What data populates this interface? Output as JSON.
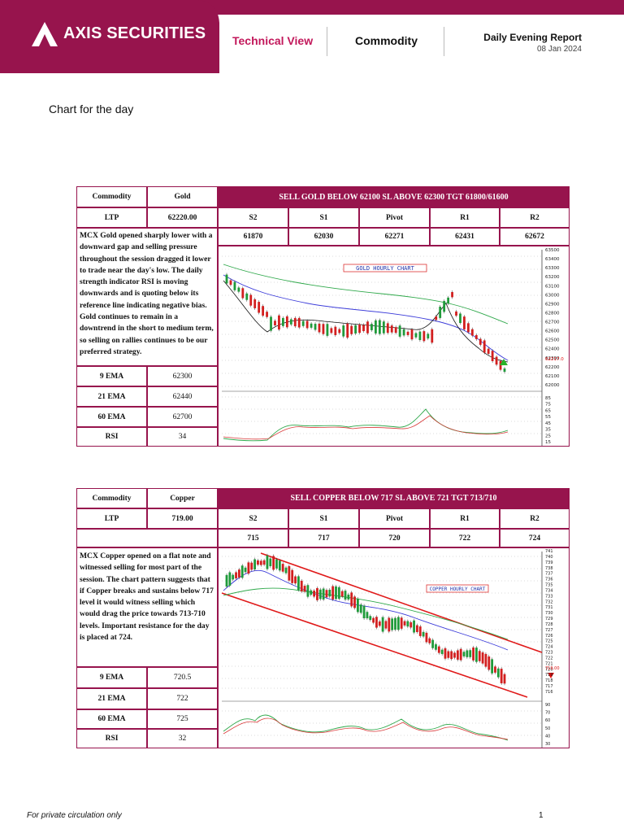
{
  "header": {
    "brand": "AXIS SECURITIES",
    "nav_technical": "Technical View",
    "nav_commodity": "Commodity",
    "report_title": "Daily Evening Report",
    "report_date": "08 Jan 2024",
    "brand_color": "#97144d"
  },
  "section_title": "Chart for the day",
  "gold": {
    "commodity_label": "Commodity",
    "commodity": "Gold",
    "banner": "SELL GOLD BELOW 62100 SL ABOVE 62300 TGT 61800/61600",
    "ltp_label": "LTP",
    "ltp": "62220.00",
    "levels_headers": [
      "S2",
      "S1",
      "Pivot",
      "R1",
      "R2"
    ],
    "levels_values": [
      "61870",
      "62030",
      "62271",
      "62431",
      "62672"
    ],
    "description": "MCX Gold opened sharply lower with a downward gap and selling pressure throughout the session dragged it lower to trade near the day's low. The daily strength indicator RSI is moving downwards and is quoting below its reference line indicating negative bias. Gold continues to remain in a downtrend in the short to medium term, so selling on rallies continues to be our preferred strategy.",
    "indicators": [
      {
        "label": "9 EMA",
        "value": "62300"
      },
      {
        "label": "21 EMA",
        "value": "62440"
      },
      {
        "label": "60 EMA",
        "value": "62700"
      },
      {
        "label": "RSI",
        "value": "34"
      }
    ],
    "chart_title": "GOLD HOURLY CHART",
    "price_ticks": [
      "63500",
      "63400",
      "63300",
      "63200",
      "63100",
      "63000",
      "62900",
      "62800",
      "62700",
      "62600",
      "62500",
      "62400",
      "62300",
      "62200",
      "62100",
      "62000"
    ],
    "last_price_tag": "62217.0",
    "rsi_ticks": [
      "85",
      "75",
      "65",
      "55",
      "45",
      "35",
      "25",
      "15"
    ]
  },
  "copper": {
    "commodity_label": "Commodity",
    "commodity": "Copper",
    "banner": "SELL COPPER BELOW 717 SL ABOVE 721 TGT 713/710",
    "ltp_label": "LTP",
    "ltp": "719.00",
    "levels_headers": [
      "S2",
      "S1",
      "Pivot",
      "R1",
      "R2"
    ],
    "levels_values": [
      "715",
      "717",
      "720",
      "722",
      "724"
    ],
    "description": "MCX Copper opened on a flat note and witnessed selling for most part of the session. The chart pattern suggests that if Copper breaks and sustains below 717 level it would witness selling which would drag the price towards 713-710 levels. Important resistance for the day is placed at 724.",
    "indicators": [
      {
        "label": "9 EMA",
        "value": "720.5"
      },
      {
        "label": "21 EMA",
        "value": "722"
      },
      {
        "label": "60 EMA",
        "value": "725"
      },
      {
        "label": "RSI",
        "value": "32"
      }
    ],
    "chart_title": "COPPER HOURLY CHART",
    "price_ticks": [
      "741",
      "740",
      "739",
      "738",
      "737",
      "736",
      "735",
      "734",
      "733",
      "732",
      "731",
      "730",
      "729",
      "728",
      "727",
      "726",
      "725",
      "724",
      "723",
      "722",
      "721",
      "720",
      "719",
      "718",
      "717",
      "716"
    ],
    "last_price_tag": "719.00",
    "rsi_ticks": [
      "90",
      "70",
      "60",
      "50",
      "40",
      "30"
    ]
  },
  "footer": {
    "left": "For private circulation only",
    "page": "1"
  }
}
